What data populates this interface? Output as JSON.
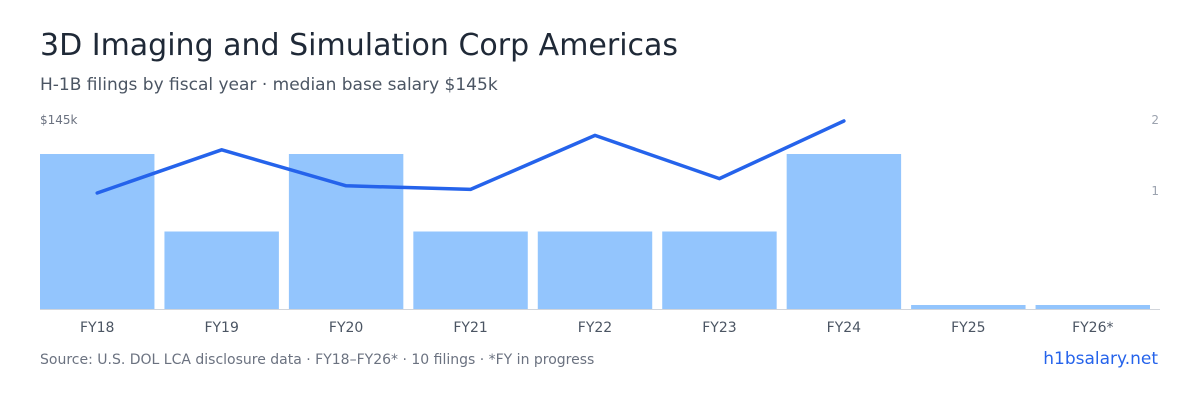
{
  "header": {
    "title": "3D Imaging and Simulation Corp Americas",
    "subtitle": "H-1B filings by fiscal year · median base salary $145k"
  },
  "footer": {
    "source": "Source: U.S. DOL LCA disclosure data · FY18–FY26* · 10 filings · *FY in progress",
    "brand": "h1bsalary.net"
  },
  "colors": {
    "bar": "#93c5fd",
    "line": "#2563eb",
    "baseline": "#d1d5db"
  },
  "chart_data": {
    "type": "bar",
    "categories": [
      "FY18",
      "FY19",
      "FY20",
      "FY21",
      "FY22",
      "FY23",
      "FY24",
      "FY25",
      "FY26*"
    ],
    "series": [
      {
        "type": "bar",
        "axis": "right",
        "values": [
          2,
          1,
          2,
          1,
          1,
          1,
          2,
          0,
          0
        ]
      },
      {
        "type": "line",
        "axis": "left",
        "values": [
          145,
          151,
          146,
          145.5,
          153,
          147,
          155,
          null,
          null
        ]
      }
    ],
    "left_axis": {
      "label": "$145k"
    },
    "right_axis": {
      "ticks": [
        "2",
        "1"
      ],
      "ylim": [
        0,
        2.4
      ]
    }
  }
}
